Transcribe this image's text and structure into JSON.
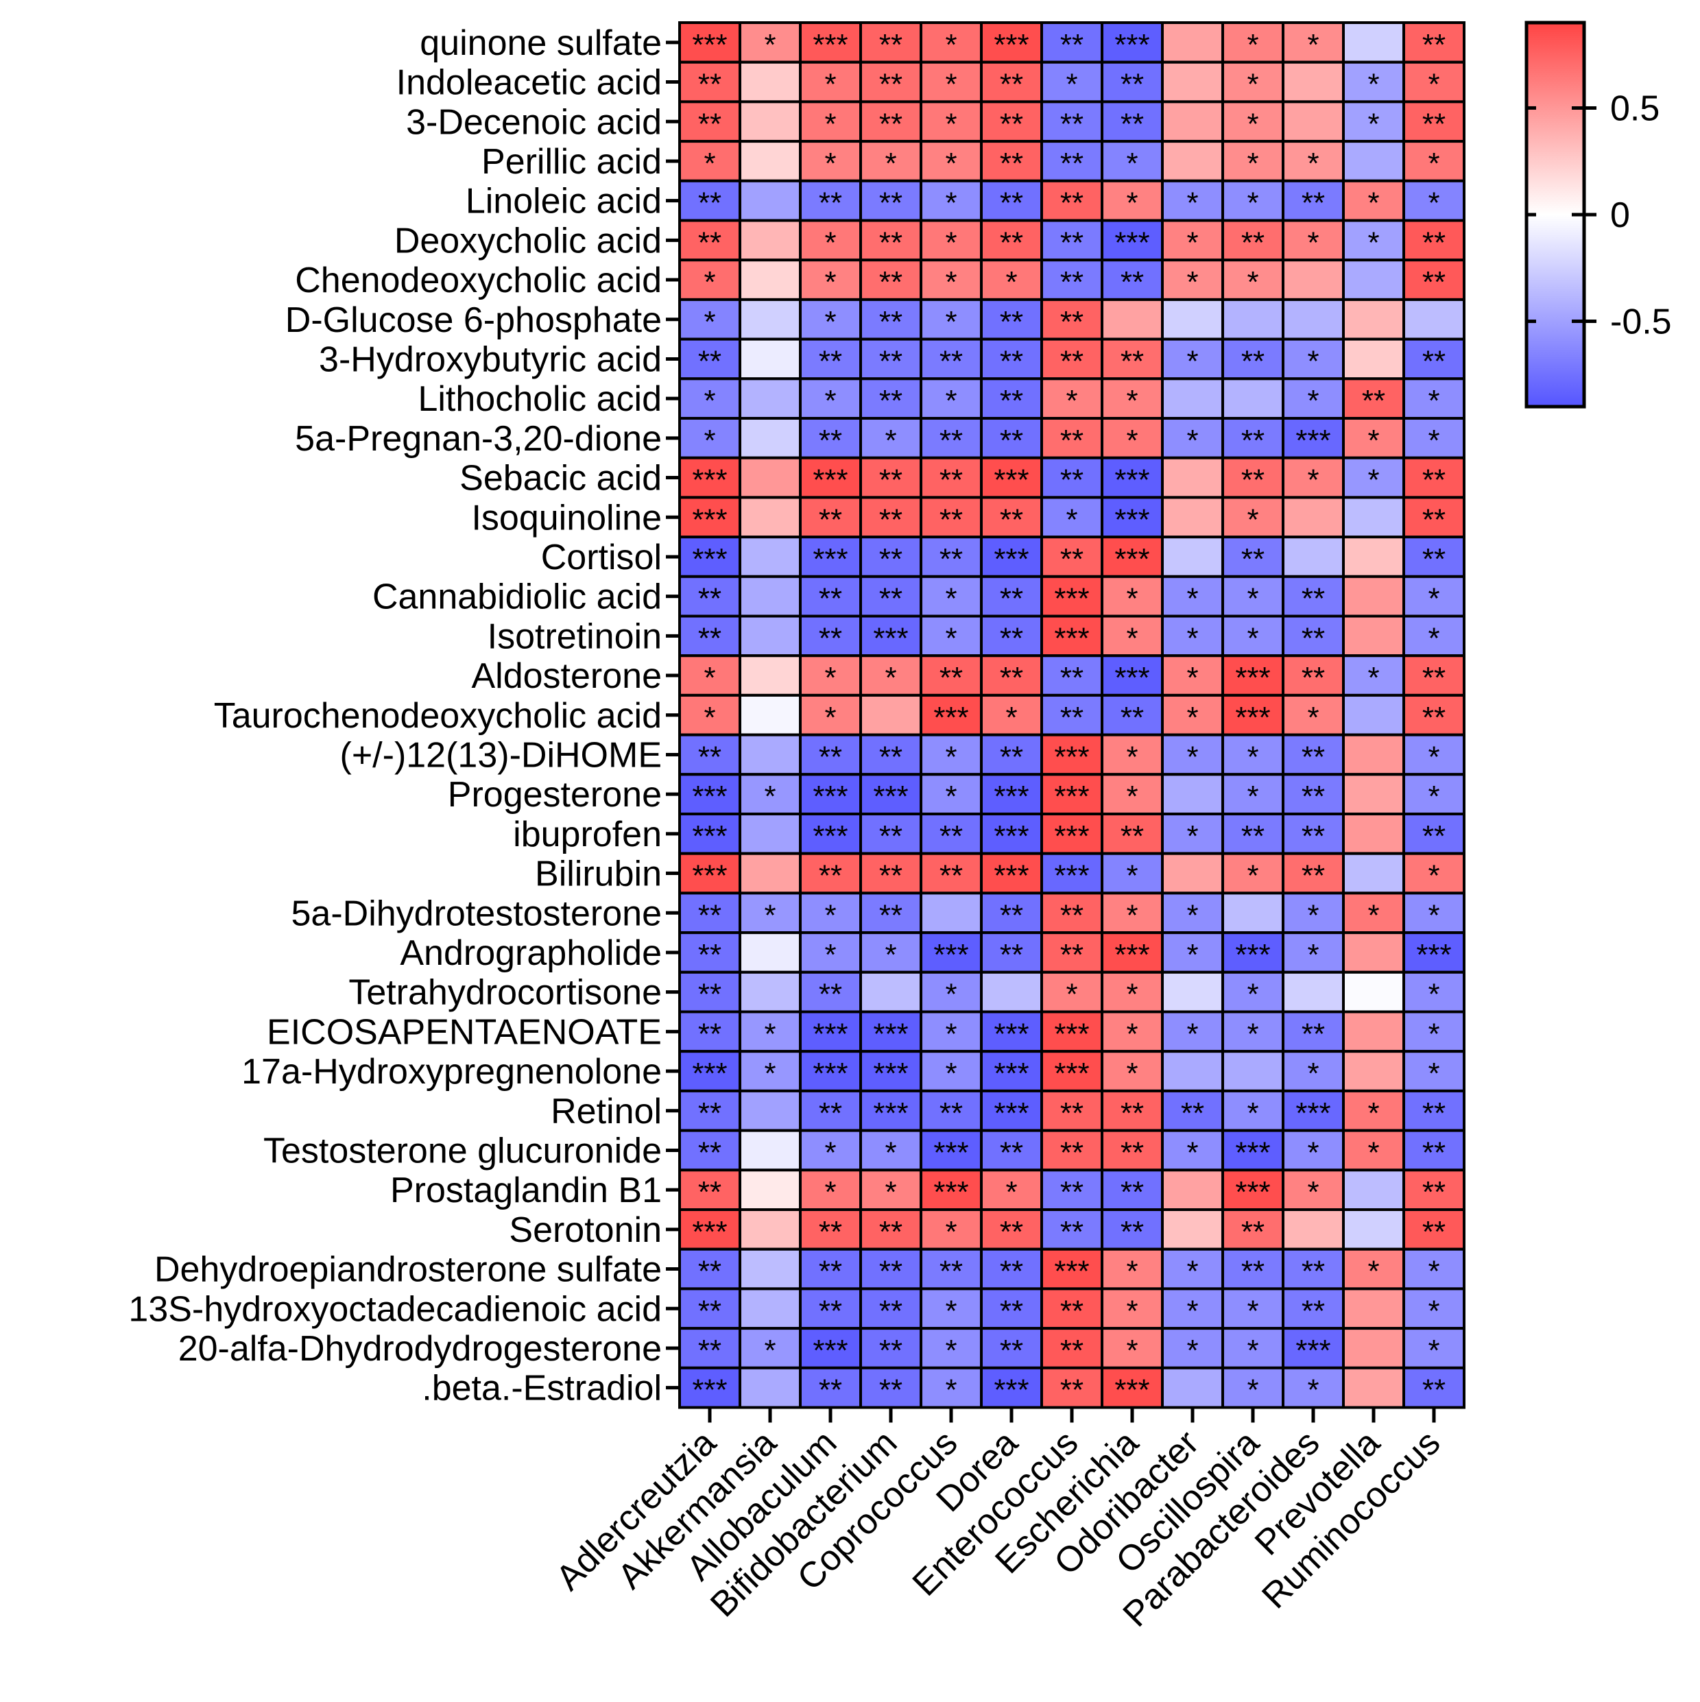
{
  "chart_data": {
    "type": "heatmap",
    "title": "",
    "colorscale": {
      "low": "#5555ff",
      "mid": "#ffffff",
      "high": "#ff4444",
      "range": [
        -0.9,
        0.9
      ]
    },
    "colorbar_ticks": [
      {
        "value": 0.5,
        "label": "0.5"
      },
      {
        "value": 0,
        "label": "0"
      },
      {
        "value": -0.5,
        "label": "-0.5"
      }
    ],
    "columns": [
      "Adlercreutzia",
      "Akkermansia",
      "Allobaculum",
      "Bifidobacterium",
      "Coprococcus",
      "Dorea",
      "Enterococcus",
      "Escherichia",
      "Odoribacter",
      "Oscillospira",
      "Parabacteroides",
      "Prevotella",
      "Ruminococcus"
    ],
    "rows": [
      "quinone sulfate",
      "Indoleacetic acid",
      "3-Decenoic acid",
      "Perillic acid",
      "Linoleic acid",
      "Deoxycholic acid",
      "Chenodeoxycholic acid",
      "D-Glucose 6-phosphate",
      "3-Hydroxybutyric acid",
      "Lithocholic acid",
      "5a-Pregnan-3,20-dione",
      "Sebacic acid",
      "Isoquinoline",
      "Cortisol",
      "Cannabidiolic acid",
      "Isotretinoin",
      "Aldosterone",
      "Taurochenodeoxycholic acid",
      "(+/-)12(13)-DiHOME",
      "Progesterone",
      "ibuprofen",
      "Bilirubin",
      "5a-Dihydrotestosterone",
      "Andrographolide",
      "Tetrahydrocortisone",
      "EICOSAPENTAENOATE",
      "17a-Hydroxypregnenolone",
      "Retinol",
      "Testosterone glucuronide",
      "Prostaglandin B1",
      "Serotonin",
      "Dehydroepiandrosterone sulfate",
      "13S-hydroxyoctadecadienoic acid",
      "20-alfa-Dhydrodydrogesterone",
      ".beta.-Estradiol"
    ],
    "values": [
      [
        0.85,
        0.55,
        0.8,
        0.75,
        0.7,
        0.85,
        -0.75,
        -0.85,
        0.45,
        0.6,
        0.55,
        -0.25,
        0.75
      ],
      [
        0.75,
        0.25,
        0.65,
        0.7,
        0.65,
        0.75,
        -0.65,
        -0.75,
        0.4,
        0.55,
        0.4,
        -0.5,
        0.7
      ],
      [
        0.75,
        0.3,
        0.65,
        0.7,
        0.65,
        0.75,
        -0.7,
        -0.75,
        0.45,
        0.55,
        0.45,
        -0.5,
        0.75
      ],
      [
        0.7,
        0.2,
        0.6,
        0.6,
        0.6,
        0.75,
        -0.7,
        -0.65,
        0.4,
        0.55,
        0.5,
        -0.45,
        0.65
      ],
      [
        -0.75,
        -0.5,
        -0.7,
        -0.7,
        -0.6,
        -0.75,
        0.75,
        0.6,
        -0.6,
        -0.6,
        -0.7,
        0.6,
        -0.65
      ],
      [
        0.75,
        0.35,
        0.65,
        0.7,
        0.65,
        0.75,
        -0.7,
        -0.85,
        0.6,
        0.7,
        0.6,
        -0.5,
        0.8
      ],
      [
        0.7,
        0.2,
        0.6,
        0.7,
        0.6,
        0.65,
        -0.7,
        -0.75,
        0.55,
        0.55,
        0.45,
        -0.45,
        0.8
      ],
      [
        -0.65,
        -0.25,
        -0.6,
        -0.7,
        -0.6,
        -0.75,
        0.75,
        0.45,
        -0.25,
        -0.4,
        -0.4,
        0.35,
        -0.35
      ],
      [
        -0.75,
        -0.1,
        -0.7,
        -0.7,
        -0.7,
        -0.75,
        0.75,
        0.7,
        -0.6,
        -0.7,
        -0.6,
        0.25,
        -0.75
      ],
      [
        -0.65,
        -0.4,
        -0.6,
        -0.7,
        -0.6,
        -0.75,
        0.6,
        0.6,
        -0.4,
        -0.4,
        -0.6,
        0.75,
        -0.6
      ],
      [
        -0.65,
        -0.25,
        -0.7,
        -0.6,
        -0.7,
        -0.75,
        0.7,
        0.65,
        -0.6,
        -0.7,
        -0.8,
        0.6,
        -0.6
      ],
      [
        0.85,
        0.5,
        0.85,
        0.75,
        0.75,
        0.85,
        -0.75,
        -0.85,
        0.4,
        0.7,
        0.6,
        -0.55,
        0.8
      ],
      [
        0.85,
        0.35,
        0.75,
        0.75,
        0.75,
        0.75,
        -0.65,
        -0.85,
        0.4,
        0.6,
        0.45,
        -0.35,
        0.8
      ],
      [
        -0.85,
        -0.4,
        -0.8,
        -0.75,
        -0.7,
        -0.85,
        0.75,
        0.85,
        -0.3,
        -0.7,
        -0.35,
        0.3,
        -0.75
      ],
      [
        -0.75,
        -0.45,
        -0.75,
        -0.75,
        -0.6,
        -0.75,
        0.85,
        0.6,
        -0.6,
        -0.6,
        -0.7,
        0.5,
        -0.6
      ],
      [
        -0.75,
        -0.45,
        -0.75,
        -0.8,
        -0.6,
        -0.75,
        0.85,
        0.6,
        -0.6,
        -0.6,
        -0.7,
        0.5,
        -0.6
      ],
      [
        0.65,
        0.2,
        0.6,
        0.6,
        0.75,
        0.75,
        -0.7,
        -0.85,
        0.6,
        0.85,
        0.7,
        -0.55,
        0.75
      ],
      [
        0.65,
        -0.05,
        0.6,
        0.45,
        0.85,
        0.65,
        -0.7,
        -0.75,
        0.6,
        0.85,
        0.6,
        -0.45,
        0.75
      ],
      [
        -0.75,
        -0.45,
        -0.75,
        -0.75,
        -0.6,
        -0.75,
        0.85,
        0.6,
        -0.6,
        -0.6,
        -0.7,
        0.5,
        -0.6
      ],
      [
        -0.85,
        -0.55,
        -0.85,
        -0.85,
        -0.6,
        -0.85,
        0.85,
        0.6,
        -0.45,
        -0.6,
        -0.7,
        0.45,
        -0.6
      ],
      [
        -0.85,
        -0.5,
        -0.85,
        -0.75,
        -0.75,
        -0.85,
        0.85,
        0.75,
        -0.6,
        -0.7,
        -0.7,
        0.5,
        -0.75
      ],
      [
        0.85,
        0.45,
        0.75,
        0.75,
        0.75,
        0.85,
        -0.8,
        -0.65,
        0.45,
        0.6,
        0.7,
        -0.35,
        0.65
      ],
      [
        -0.75,
        -0.55,
        -0.6,
        -0.7,
        -0.45,
        -0.75,
        0.75,
        0.6,
        -0.6,
        -0.35,
        -0.6,
        0.65,
        -0.6
      ],
      [
        -0.75,
        -0.1,
        -0.6,
        -0.6,
        -0.85,
        -0.75,
        0.75,
        0.85,
        -0.6,
        -0.85,
        -0.6,
        0.5,
        -0.85
      ],
      [
        -0.75,
        -0.35,
        -0.7,
        -0.35,
        -0.6,
        -0.35,
        0.6,
        0.6,
        -0.2,
        -0.6,
        -0.25,
        -0.02,
        -0.6
      ],
      [
        -0.75,
        -0.55,
        -0.85,
        -0.85,
        -0.6,
        -0.85,
        0.85,
        0.6,
        -0.6,
        -0.6,
        -0.7,
        0.5,
        -0.6
      ],
      [
        -0.85,
        -0.55,
        -0.85,
        -0.85,
        -0.6,
        -0.85,
        0.85,
        0.6,
        -0.45,
        -0.45,
        -0.6,
        0.45,
        -0.6
      ],
      [
        -0.75,
        -0.5,
        -0.75,
        -0.8,
        -0.75,
        -0.85,
        0.75,
        0.75,
        -0.75,
        -0.6,
        -0.8,
        0.65,
        -0.75
      ],
      [
        -0.75,
        -0.1,
        -0.6,
        -0.6,
        -0.85,
        -0.75,
        0.75,
        0.75,
        -0.6,
        -0.85,
        -0.6,
        0.65,
        -0.75
      ],
      [
        0.75,
        0.1,
        0.65,
        0.6,
        0.85,
        0.65,
        -0.7,
        -0.75,
        0.45,
        0.85,
        0.6,
        -0.35,
        0.75
      ],
      [
        0.85,
        0.3,
        0.75,
        0.75,
        0.65,
        0.75,
        -0.7,
        -0.75,
        0.3,
        0.7,
        0.35,
        -0.25,
        0.8
      ],
      [
        -0.75,
        -0.35,
        -0.75,
        -0.75,
        -0.7,
        -0.75,
        0.85,
        0.6,
        -0.6,
        -0.7,
        -0.7,
        0.6,
        -0.6
      ],
      [
        -0.75,
        -0.4,
        -0.75,
        -0.75,
        -0.6,
        -0.75,
        0.8,
        0.6,
        -0.6,
        -0.6,
        -0.7,
        0.5,
        -0.6
      ],
      [
        -0.75,
        -0.55,
        -0.85,
        -0.75,
        -0.6,
        -0.75,
        0.8,
        0.6,
        -0.6,
        -0.6,
        -0.8,
        0.5,
        -0.6
      ],
      [
        -0.85,
        -0.45,
        -0.75,
        -0.75,
        -0.6,
        -0.85,
        0.75,
        0.85,
        -0.45,
        -0.6,
        -0.6,
        0.45,
        -0.75
      ]
    ],
    "significance": [
      [
        "***",
        "*",
        "***",
        "**",
        "*",
        "***",
        "**",
        "***",
        "",
        "*",
        "*",
        "",
        "**"
      ],
      [
        "**",
        "",
        "*",
        "**",
        "*",
        "**",
        "*",
        "**",
        "",
        "*",
        "",
        "*",
        "*"
      ],
      [
        "**",
        "",
        "*",
        "**",
        "*",
        "**",
        "**",
        "**",
        "",
        "*",
        "",
        "*",
        "**"
      ],
      [
        "*",
        "",
        "*",
        "*",
        "*",
        "**",
        "**",
        "*",
        "",
        "*",
        "*",
        "",
        "*"
      ],
      [
        "**",
        "",
        "**",
        "**",
        "*",
        "**",
        "**",
        "*",
        "*",
        "*",
        "**",
        "*",
        "*"
      ],
      [
        "**",
        "",
        "*",
        "**",
        "*",
        "**",
        "**",
        "***",
        "*",
        "**",
        "*",
        "*",
        "**"
      ],
      [
        "*",
        "",
        "*",
        "**",
        "*",
        "*",
        "**",
        "**",
        "*",
        "*",
        "",
        "",
        "**"
      ],
      [
        "*",
        "",
        "*",
        "**",
        "*",
        "**",
        "**",
        "",
        "",
        "",
        "",
        "",
        ""
      ],
      [
        "**",
        "",
        "**",
        "**",
        "**",
        "**",
        "**",
        "**",
        "*",
        "**",
        "*",
        "",
        "**"
      ],
      [
        "*",
        "",
        "*",
        "**",
        "*",
        "**",
        "*",
        "*",
        "",
        "",
        "*",
        "**",
        "*"
      ],
      [
        "*",
        "",
        "**",
        "*",
        "**",
        "**",
        "**",
        "*",
        "*",
        "**",
        "***",
        "*",
        "*"
      ],
      [
        "***",
        "",
        "***",
        "**",
        "**",
        "***",
        "**",
        "***",
        "",
        "**",
        "*",
        "*",
        "**"
      ],
      [
        "***",
        "",
        "**",
        "**",
        "**",
        "**",
        "*",
        "***",
        "",
        "*",
        "",
        "",
        "**"
      ],
      [
        "***",
        "",
        "***",
        "**",
        "**",
        "***",
        "**",
        "***",
        "",
        "**",
        "",
        "",
        "**"
      ],
      [
        "**",
        "",
        "**",
        "**",
        "*",
        "**",
        "***",
        "*",
        "*",
        "*",
        "**",
        "",
        "*"
      ],
      [
        "**",
        "",
        "**",
        "***",
        "*",
        "**",
        "***",
        "*",
        "*",
        "*",
        "**",
        "",
        "*"
      ],
      [
        "*",
        "",
        "*",
        "*",
        "**",
        "**",
        "**",
        "***",
        "*",
        "***",
        "**",
        "*",
        "**"
      ],
      [
        "*",
        "",
        "*",
        "",
        "***",
        "*",
        "**",
        "**",
        "*",
        "***",
        "*",
        "",
        "**"
      ],
      [
        "**",
        "",
        "**",
        "**",
        "*",
        "**",
        "***",
        "*",
        "*",
        "*",
        "**",
        "",
        "*"
      ],
      [
        "***",
        "*",
        "***",
        "***",
        "*",
        "***",
        "***",
        "*",
        "",
        "*",
        "**",
        "",
        "*"
      ],
      [
        "***",
        "",
        "***",
        "**",
        "**",
        "***",
        "***",
        "**",
        "*",
        "**",
        "**",
        "",
        "**"
      ],
      [
        "***",
        "",
        "**",
        "**",
        "**",
        "***",
        "***",
        "*",
        "",
        "*",
        "**",
        "",
        "*"
      ],
      [
        "**",
        "*",
        "*",
        "**",
        "",
        "**",
        "**",
        "*",
        "*",
        "",
        "*",
        "*",
        "*"
      ],
      [
        "**",
        "",
        "*",
        "*",
        "***",
        "**",
        "**",
        "***",
        "*",
        "***",
        "*",
        "",
        "***"
      ],
      [
        "**",
        "",
        "**",
        "",
        "*",
        "",
        "*",
        "*",
        "",
        "*",
        "",
        "",
        "*"
      ],
      [
        "**",
        "*",
        "***",
        "***",
        "*",
        "***",
        "***",
        "*",
        "*",
        "*",
        "**",
        "",
        "*"
      ],
      [
        "***",
        "*",
        "***",
        "***",
        "*",
        "***",
        "***",
        "*",
        "",
        "",
        "*",
        "",
        "*"
      ],
      [
        "**",
        "",
        "**",
        "***",
        "**",
        "***",
        "**",
        "**",
        "**",
        "*",
        "***",
        "*",
        "**"
      ],
      [
        "**",
        "",
        "*",
        "*",
        "***",
        "**",
        "**",
        "**",
        "*",
        "***",
        "*",
        "*",
        "**"
      ],
      [
        "**",
        "",
        "*",
        "*",
        "***",
        "*",
        "**",
        "**",
        "",
        "***",
        "*",
        "",
        "**"
      ],
      [
        "***",
        "",
        "**",
        "**",
        "*",
        "**",
        "**",
        "**",
        "",
        "**",
        "",
        "",
        "**"
      ],
      [
        "**",
        "",
        "**",
        "**",
        "**",
        "**",
        "***",
        "*",
        "*",
        "**",
        "**",
        "*",
        "*"
      ],
      [
        "**",
        "",
        "**",
        "**",
        "*",
        "**",
        "**",
        "*",
        "*",
        "*",
        "**",
        "",
        "*"
      ],
      [
        "**",
        "*",
        "***",
        "**",
        "*",
        "**",
        "**",
        "*",
        "*",
        "*",
        "***",
        "",
        "*"
      ],
      [
        "***",
        "",
        "**",
        "**",
        "*",
        "***",
        "**",
        "***",
        "",
        "*",
        "*",
        "",
        "**"
      ]
    ]
  }
}
